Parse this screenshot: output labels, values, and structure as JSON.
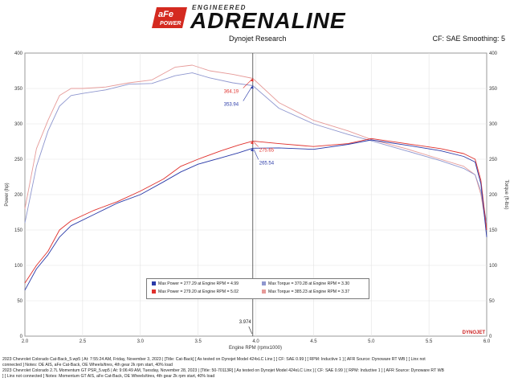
{
  "header": {
    "brand_badge_top": "aFe",
    "brand_badge_bottom": "POWER",
    "brand_tagline": "ENGINEERED",
    "brand_title": "ADRENALINE",
    "center_label": "Dynojet Research",
    "right_label": "CF: SAE Smoothing: 5"
  },
  "colors": {
    "red": "#e0302c",
    "red_light": "#e69a98",
    "blue": "#2a3aa8",
    "blue_light": "#8f97cf",
    "frame": "#9a9a9a"
  },
  "chart_data": {
    "type": "line",
    "xlabel": "Engine RPM (rpmx1000)",
    "ylabel_left": "Power (hp)",
    "ylabel_right": "Torque (ft-lbs)",
    "xlim": [
      2.0,
      6.0
    ],
    "ylim": [
      0,
      400
    ],
    "x_ticks": [
      "2.0",
      "2.5",
      "3.0",
      "3.5",
      "4.0",
      "4.5",
      "5.0",
      "5.5",
      "6.0"
    ],
    "y_ticks": [
      "0",
      "50",
      "100",
      "150",
      "200",
      "250",
      "300",
      "350",
      "400"
    ],
    "cursor_rpm": "3.974",
    "series": [
      {
        "name": "Torque (red run)",
        "color": "red_light",
        "x": [
          2.0,
          2.1,
          2.2,
          2.3,
          2.4,
          2.5,
          2.7,
          2.9,
          3.1,
          3.3,
          3.45,
          3.6,
          3.8,
          3.974,
          4.2,
          4.5,
          4.8,
          5.0,
          5.3,
          5.6,
          5.8,
          5.9,
          5.95,
          6.0
        ],
        "y": [
          180,
          265,
          305,
          340,
          350,
          350,
          352,
          358,
          362,
          380,
          383,
          375,
          370,
          364.19,
          330,
          305,
          290,
          278,
          265,
          250,
          240,
          228,
          200,
          150
        ]
      },
      {
        "name": "Torque (blue run)",
        "color": "blue_light",
        "x": [
          2.0,
          2.1,
          2.2,
          2.3,
          2.4,
          2.5,
          2.7,
          2.9,
          3.1,
          3.3,
          3.45,
          3.6,
          3.8,
          3.974,
          4.2,
          4.5,
          4.8,
          5.0,
          5.3,
          5.6,
          5.8,
          5.9,
          5.95,
          6.0
        ],
        "y": [
          160,
          240,
          290,
          325,
          340,
          343,
          348,
          356,
          357,
          368,
          372,
          365,
          358,
          353.94,
          322,
          300,
          285,
          276,
          262,
          248,
          237,
          228,
          205,
          160
        ]
      },
      {
        "name": "Power (red run)",
        "color": "red",
        "x": [
          2.0,
          2.1,
          2.2,
          2.3,
          2.4,
          2.6,
          2.8,
          3.0,
          3.2,
          3.35,
          3.5,
          3.7,
          3.85,
          3.974,
          4.2,
          4.5,
          4.8,
          5.0,
          5.3,
          5.6,
          5.8,
          5.9,
          5.95,
          6.0
        ],
        "y": [
          75,
          100,
          120,
          150,
          163,
          178,
          190,
          205,
          222,
          240,
          250,
          262,
          270,
          275.65,
          272,
          268,
          272,
          279.2,
          272,
          265,
          258,
          250,
          220,
          150
        ]
      },
      {
        "name": "Power (blue run)",
        "color": "blue",
        "x": [
          2.0,
          2.1,
          2.2,
          2.3,
          2.4,
          2.6,
          2.8,
          3.0,
          3.2,
          3.35,
          3.5,
          3.7,
          3.85,
          3.974,
          4.2,
          4.5,
          4.8,
          5.0,
          5.3,
          5.6,
          5.8,
          5.9,
          5.95,
          6.0
        ],
        "y": [
          65,
          95,
          115,
          140,
          156,
          172,
          188,
          200,
          218,
          232,
          243,
          252,
          259,
          265.54,
          266,
          264,
          271,
          277.29,
          270,
          262,
          254,
          246,
          215,
          140
        ]
      }
    ],
    "cursor_values": [
      {
        "label": "364.19",
        "x": 3.974,
        "y": 364.19,
        "color": "red"
      },
      {
        "label": "353.94",
        "x": 3.974,
        "y": 353.94,
        "color": "blue"
      },
      {
        "label": "275.65",
        "x": 3.974,
        "y": 275.65,
        "color": "red"
      },
      {
        "label": "265.54",
        "x": 3.974,
        "y": 265.54,
        "color": "blue"
      }
    ],
    "legend": [
      {
        "color": "blue",
        "text": "Max Power = 277.29 at Engine RPM = 4.99"
      },
      {
        "color": "blue_light",
        "text": "Max Torque = 370.28 at Engine RPM = 3.30"
      },
      {
        "color": "red",
        "text": "Max Power = 279.20 at Engine RPM = 5.02"
      },
      {
        "color": "red_light",
        "text": "Max Torque = 385.23 at Engine RPM = 3.37"
      }
    ],
    "watermark": "DYNOJET"
  },
  "footer": {
    "line1": "2023 Chevrolet Colorado Cat-Back_5.wp5 | At: 7:55:24 AM, Friday, November 3, 2023 | [Title: Cat-Back] [ As tested on Dynojet Model 424xLC Linx ] [ CF: SAE 0.99 ] [ RPM: Inductive 1 ] [ AFR Source: Dynoware RT WB ] [ Linx not",
    "line2": "connected ] Notes: OE AIS, aFe Cat-Back, OE Wheels/tires, 4th gear 2k rpm start, 40% load",
    "line3": "2023 Chevrolet Colorado 2.7L Momentum GT PSR_5.wp5 | At: 9:06:49 AM, Tuesday, November 28, 2023 | [Title: 50-70113R] [ As tested on Dynojet Model 424xLC Linx ] [ CF: SAE 0.99 ] [ RPM: Inductive 1 ] [ AFR Source: Dynoware RT WB",
    "line4": "] [ Linx not connected ] Notes: Momentum GT AIS, aFe Cat-Back, OE Wheels/tires, 4th gear 2k rpm start, 40% load"
  }
}
